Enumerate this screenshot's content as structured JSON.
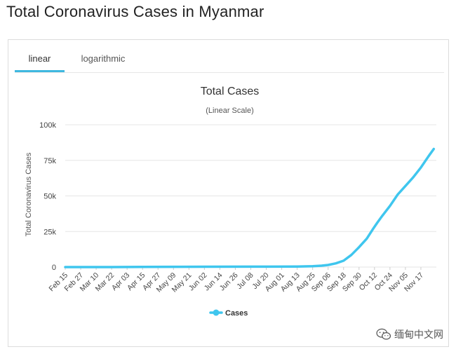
{
  "page": {
    "title": "Total Coronavirus Cases in Myanmar"
  },
  "tabs": [
    {
      "label": "linear",
      "active": true
    },
    {
      "label": "logarithmic",
      "active": false
    }
  ],
  "watermark": {
    "text": "缅甸中文网",
    "icon": "wechat-icon"
  },
  "colors": {
    "series": "#3fc6ee",
    "tab_accent": "#3fb8e0",
    "grid": "#e6e6e6"
  },
  "chart_data": {
    "type": "line",
    "title": "Total Cases",
    "subtitle": "(Linear Scale)",
    "xlabel": "",
    "ylabel": "Total Coronavirus Cases",
    "ylim": [
      0,
      100000
    ],
    "yticks": [
      0,
      25000,
      50000,
      75000,
      100000
    ],
    "ytick_labels": [
      "0",
      "25k",
      "50k",
      "75k",
      "100k"
    ],
    "grid": true,
    "legend": "bottom-center",
    "x_labels": [
      "Feb 15",
      "Feb 27",
      "Mar 10",
      "Mar 22",
      "Apr 03",
      "Apr 15",
      "Apr 27",
      "May 09",
      "May 21",
      "Jun 02",
      "Jun 14",
      "Jun 26",
      "Jul 08",
      "Jul 20",
      "Aug 01",
      "Aug 13",
      "Aug 25",
      "Sep 06",
      "Sep 18",
      "Sep 30",
      "Oct 12",
      "Oct 24",
      "Nov 05",
      "Nov 17"
    ],
    "x_start": "2020-02-15",
    "x_end": "2020-11-29",
    "series": [
      {
        "name": "Cases",
        "points": [
          [
            "2020-02-15",
            0
          ],
          [
            "2020-03-22",
            5
          ],
          [
            "2020-04-15",
            85
          ],
          [
            "2020-05-09",
            180
          ],
          [
            "2020-06-02",
            230
          ],
          [
            "2020-07-08",
            310
          ],
          [
            "2020-08-13",
            360
          ],
          [
            "2020-08-25",
            600
          ],
          [
            "2020-09-01",
            1000
          ],
          [
            "2020-09-06",
            1500
          ],
          [
            "2020-09-12",
            2600
          ],
          [
            "2020-09-18",
            4500
          ],
          [
            "2020-09-24",
            8500
          ],
          [
            "2020-09-30",
            14000
          ],
          [
            "2020-10-06",
            20000
          ],
          [
            "2020-10-11",
            27000
          ],
          [
            "2020-10-14",
            31000
          ],
          [
            "2020-10-18",
            36000
          ],
          [
            "2020-10-24",
            43000
          ],
          [
            "2020-10-30",
            51000
          ],
          [
            "2020-11-05",
            57000
          ],
          [
            "2020-11-11",
            63000
          ],
          [
            "2020-11-17",
            70000
          ],
          [
            "2020-11-23",
            78000
          ],
          [
            "2020-11-27",
            83000
          ]
        ]
      }
    ]
  }
}
